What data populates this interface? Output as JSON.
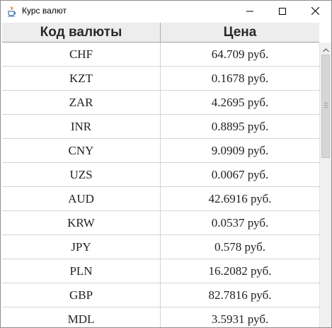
{
  "window": {
    "title": "Курс валют"
  },
  "table": {
    "headers": {
      "code": "Код валюты",
      "price": "Цена"
    },
    "rows": [
      {
        "code": "CHF",
        "price": "64.709 руб."
      },
      {
        "code": "KZT",
        "price": "0.1678 руб."
      },
      {
        "code": "ZAR",
        "price": "4.2695 руб."
      },
      {
        "code": "INR",
        "price": "0.8895 руб."
      },
      {
        "code": "CNY",
        "price": "9.0909 руб."
      },
      {
        "code": "UZS",
        "price": "0.0067 руб."
      },
      {
        "code": "AUD",
        "price": "42.6916 руб."
      },
      {
        "code": "KRW",
        "price": "0.0537 руб."
      },
      {
        "code": "JPY",
        "price": "0.578 руб."
      },
      {
        "code": "PLN",
        "price": "16.2082 руб."
      },
      {
        "code": "GBP",
        "price": "82.7816 руб."
      },
      {
        "code": "MDL",
        "price": "3.5931 руб."
      }
    ]
  },
  "icons": {
    "app": "java-cup-icon",
    "minimize": "minimize-icon",
    "maximize": "maximize-icon",
    "close": "close-icon",
    "scroll_up": "chevron-up-icon"
  }
}
